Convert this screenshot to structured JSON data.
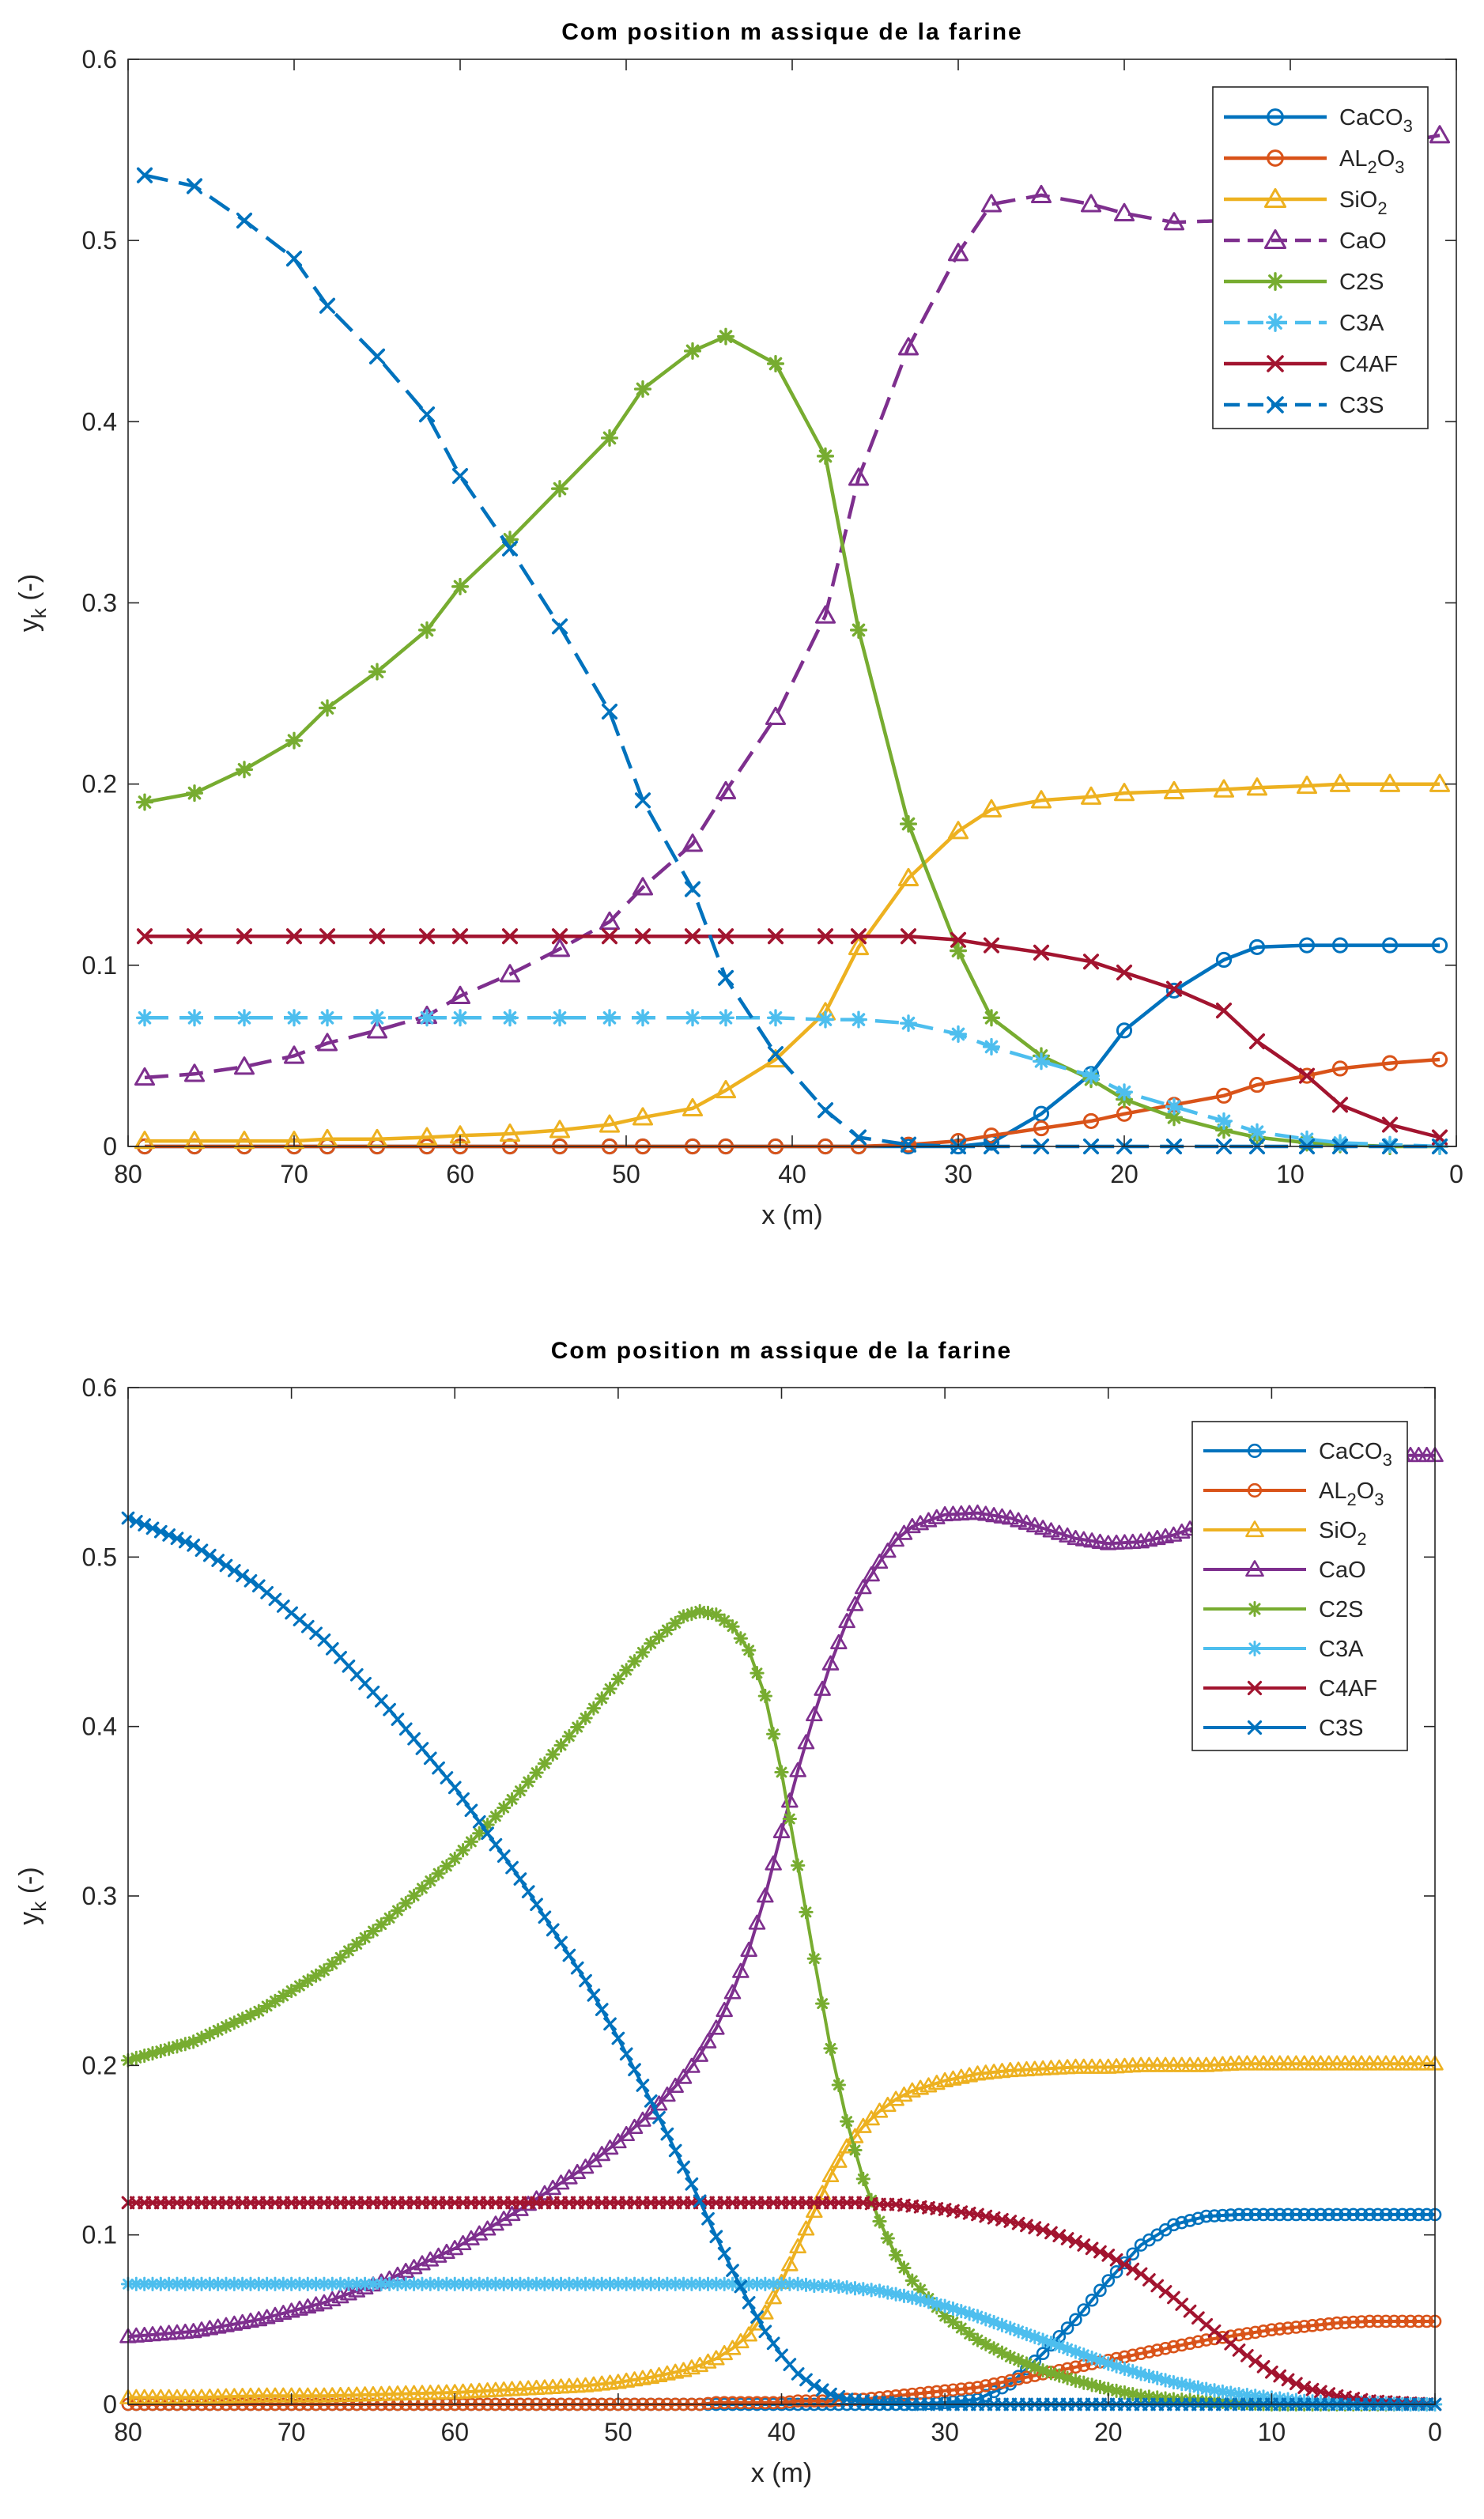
{
  "chart_data": [
    {
      "type": "line",
      "title": "Com position m assique de la farine",
      "xlabel": "x (m)",
      "ylabel": "y_k (-)",
      "xlim": [
        80,
        0
      ],
      "ylim": [
        0,
        0.6
      ],
      "x_reversed": true,
      "x_ticks": [
        80,
        70,
        60,
        50,
        40,
        30,
        20,
        10,
        0
      ],
      "y_ticks": [
        0,
        0.1,
        0.2,
        0.3,
        0.4,
        0.5,
        0.6
      ],
      "legend_position": "top-right",
      "grid": false,
      "x": [
        79,
        76,
        73,
        70,
        68,
        65,
        62,
        60,
        57,
        54,
        51,
        49,
        46,
        44,
        41,
        38,
        36,
        33,
        30,
        28,
        25,
        22,
        20,
        17,
        14,
        12,
        9,
        7,
        4,
        1
      ],
      "series": [
        {
          "name": "CaCO",
          "sub": "3",
          "color": "#0072BD",
          "marker": "circle",
          "dash": false,
          "values": [
            0,
            0,
            0,
            0,
            0,
            0,
            0,
            0,
            0,
            0,
            0,
            0,
            0,
            0,
            0,
            0,
            0,
            0,
            0,
            0.002,
            0.018,
            0.04,
            0.064,
            0.086,
            0.103,
            0.11,
            0.111,
            0.111,
            0.111,
            0.111
          ]
        },
        {
          "name": "AL",
          "sub": "2",
          "tail": "O",
          "sub2": "3",
          "color": "#D95319",
          "marker": "circle",
          "dash": false,
          "values": [
            0,
            0,
            0,
            0,
            0,
            0,
            0,
            0,
            0,
            0,
            0,
            0,
            0,
            0,
            0,
            0,
            0,
            0.001,
            0.003,
            0.006,
            0.01,
            0.014,
            0.018,
            0.023,
            0.028,
            0.034,
            0.039,
            0.043,
            0.046,
            0.048
          ]
        },
        {
          "name": "SiO",
          "sub": "2",
          "color": "#EDB120",
          "marker": "triangle",
          "dash": false,
          "values": [
            0.003,
            0.003,
            0.003,
            0.003,
            0.004,
            0.004,
            0.005,
            0.006,
            0.007,
            0.009,
            0.012,
            0.016,
            0.021,
            0.031,
            0.048,
            0.074,
            0.11,
            0.148,
            0.174,
            0.186,
            0.191,
            0.193,
            0.195,
            0.196,
            0.197,
            0.198,
            0.199,
            0.2,
            0.2,
            0.2
          ]
        },
        {
          "name": "CaO",
          "color": "#7E2F8E",
          "marker": "triangle",
          "dash": true,
          "values": [
            0.038,
            0.04,
            0.044,
            0.05,
            0.057,
            0.064,
            0.072,
            0.083,
            0.095,
            0.109,
            0.124,
            0.143,
            0.167,
            0.196,
            0.237,
            0.293,
            0.369,
            0.441,
            0.493,
            0.52,
            0.525,
            0.52,
            0.515,
            0.51,
            0.511,
            0.52,
            0.533,
            0.545,
            0.553,
            0.558
          ]
        },
        {
          "name": "C2S",
          "color": "#77AC30",
          "marker": "asterisk",
          "dash": false,
          "values": [
            0.19,
            0.195,
            0.208,
            0.224,
            0.242,
            0.262,
            0.285,
            0.309,
            0.335,
            0.363,
            0.391,
            0.418,
            0.439,
            0.447,
            0.432,
            0.381,
            0.285,
            0.178,
            0.108,
            0.071,
            0.05,
            0.037,
            0.026,
            0.016,
            0.009,
            0.005,
            0.002,
            0.001,
            0,
            0
          ]
        },
        {
          "name": "C3A",
          "color": "#4DBEEE",
          "marker": "asterisk",
          "dash": true,
          "values": [
            0.071,
            0.071,
            0.071,
            0.071,
            0.071,
            0.071,
            0.071,
            0.071,
            0.071,
            0.071,
            0.071,
            0.071,
            0.071,
            0.071,
            0.071,
            0.07,
            0.07,
            0.068,
            0.062,
            0.055,
            0.047,
            0.039,
            0.03,
            0.022,
            0.014,
            0.008,
            0.004,
            0.002,
            0.001,
            0
          ]
        },
        {
          "name": "C4AF",
          "color": "#A2142F",
          "marker": "cross",
          "dash": false,
          "values": [
            0.116,
            0.116,
            0.116,
            0.116,
            0.116,
            0.116,
            0.116,
            0.116,
            0.116,
            0.116,
            0.116,
            0.116,
            0.116,
            0.116,
            0.116,
            0.116,
            0.116,
            0.116,
            0.114,
            0.111,
            0.107,
            0.102,
            0.096,
            0.087,
            0.075,
            0.058,
            0.039,
            0.023,
            0.012,
            0.005
          ]
        },
        {
          "name": "C3S",
          "color": "#0072BD",
          "marker": "cross",
          "dash": true,
          "values": [
            0.536,
            0.53,
            0.511,
            0.49,
            0.464,
            0.436,
            0.404,
            0.37,
            0.33,
            0.287,
            0.24,
            0.191,
            0.142,
            0.093,
            0.051,
            0.02,
            0.005,
            0.001,
            0,
            0,
            0,
            0,
            0,
            0,
            0,
            0,
            0,
            0,
            0,
            0
          ]
        }
      ]
    },
    {
      "type": "line",
      "title": "Com position m assique de la farine",
      "xlabel": "x (m)",
      "ylabel": "y_k (-)",
      "xlim": [
        80,
        0
      ],
      "ylim": [
        0,
        0.6
      ],
      "x_reversed": true,
      "x_ticks": [
        80,
        70,
        60,
        50,
        40,
        30,
        20,
        10,
        0
      ],
      "y_ticks": [
        0,
        0.1,
        0.2,
        0.3,
        0.4,
        0.5,
        0.6
      ],
      "legend_position": "top-right",
      "grid": false,
      "x_start": 80,
      "x_end": 0,
      "x_count": 161,
      "x": [
        80,
        76,
        72,
        68,
        64,
        60,
        56,
        52,
        50,
        48,
        46,
        45,
        44,
        43,
        42,
        41,
        40,
        39,
        38,
        37,
        36,
        35,
        34,
        33,
        32,
        30,
        28,
        26,
        24,
        22,
        20,
        18,
        16,
        14,
        12,
        10,
        8,
        6,
        4,
        2,
        0
      ],
      "series": [
        {
          "name": "CaCO",
          "sub": "3",
          "color": "#0072BD",
          "marker": "circle",
          "dash": false,
          "values": [
            0,
            0,
            0,
            0,
            0,
            0,
            0,
            0,
            0,
            0,
            0,
            0,
            0,
            0,
            0,
            0,
            0,
            0,
            0,
            0,
            0,
            0,
            0,
            0,
            0,
            0.001,
            0.003,
            0.012,
            0.03,
            0.05,
            0.073,
            0.094,
            0.106,
            0.111,
            0.112,
            0.112,
            0.112,
            0.112,
            0.112,
            0.112,
            0.112
          ]
        },
        {
          "name": "AL",
          "sub": "2",
          "tail": "O",
          "sub2": "3",
          "color": "#D95319",
          "marker": "circle",
          "dash": false,
          "values": [
            0,
            0,
            0,
            0,
            0,
            0,
            0,
            0,
            0,
            0,
            0,
            0,
            0.001,
            0.001,
            0.001,
            0.001,
            0.001,
            0.002,
            0.002,
            0.002,
            0.003,
            0.003,
            0.004,
            0.005,
            0.006,
            0.008,
            0.01,
            0.014,
            0.018,
            0.022,
            0.026,
            0.03,
            0.034,
            0.038,
            0.041,
            0.044,
            0.046,
            0.048,
            0.049,
            0.049,
            0.049
          ]
        },
        {
          "name": "SiO",
          "sub": "2",
          "color": "#EDB120",
          "marker": "triangle",
          "dash": false,
          "values": [
            0.004,
            0.004,
            0.005,
            0.005,
            0.006,
            0.007,
            0.009,
            0.011,
            0.013,
            0.016,
            0.02,
            0.023,
            0.027,
            0.033,
            0.041,
            0.054,
            0.072,
            0.093,
            0.114,
            0.135,
            0.152,
            0.164,
            0.173,
            0.18,
            0.185,
            0.191,
            0.195,
            0.197,
            0.198,
            0.199,
            0.199,
            0.2,
            0.2,
            0.2,
            0.201,
            0.201,
            0.201,
            0.201,
            0.201,
            0.201,
            0.201
          ]
        },
        {
          "name": "CaO",
          "color": "#7E2F8E",
          "marker": "triangle",
          "dash": false,
          "values": [
            0.04,
            0.043,
            0.05,
            0.06,
            0.074,
            0.092,
            0.115,
            0.14,
            0.155,
            0.172,
            0.193,
            0.206,
            0.222,
            0.243,
            0.268,
            0.3,
            0.338,
            0.374,
            0.407,
            0.437,
            0.462,
            0.482,
            0.497,
            0.51,
            0.518,
            0.525,
            0.526,
            0.523,
            0.517,
            0.511,
            0.508,
            0.509,
            0.513,
            0.52,
            0.53,
            0.54,
            0.549,
            0.555,
            0.558,
            0.56,
            0.56
          ]
        },
        {
          "name": "C2S",
          "color": "#77AC30",
          "marker": "asterisk",
          "dash": false,
          "values": [
            0.203,
            0.214,
            0.232,
            0.256,
            0.287,
            0.322,
            0.362,
            0.405,
            0.428,
            0.449,
            0.465,
            0.468,
            0.466,
            0.459,
            0.445,
            0.418,
            0.373,
            0.318,
            0.263,
            0.21,
            0.167,
            0.133,
            0.108,
            0.088,
            0.073,
            0.052,
            0.038,
            0.028,
            0.02,
            0.014,
            0.009,
            0.005,
            0.003,
            0.002,
            0.001,
            0,
            0,
            0,
            0,
            0,
            0
          ]
        },
        {
          "name": "C3A",
          "color": "#4DBEEE",
          "marker": "asterisk",
          "dash": false,
          "values": [
            0.071,
            0.071,
            0.071,
            0.071,
            0.071,
            0.071,
            0.071,
            0.071,
            0.071,
            0.071,
            0.071,
            0.071,
            0.071,
            0.071,
            0.071,
            0.071,
            0.071,
            0.071,
            0.07,
            0.07,
            0.069,
            0.068,
            0.067,
            0.065,
            0.063,
            0.058,
            0.052,
            0.045,
            0.038,
            0.031,
            0.024,
            0.018,
            0.013,
            0.009,
            0.006,
            0.004,
            0.002,
            0.001,
            0.001,
            0,
            0
          ]
        },
        {
          "name": "C4AF",
          "color": "#A2142F",
          "marker": "cross",
          "dash": false,
          "values": [
            0.119,
            0.119,
            0.119,
            0.119,
            0.119,
            0.119,
            0.119,
            0.119,
            0.119,
            0.119,
            0.119,
            0.119,
            0.119,
            0.119,
            0.119,
            0.119,
            0.119,
            0.119,
            0.119,
            0.119,
            0.119,
            0.119,
            0.118,
            0.118,
            0.117,
            0.115,
            0.112,
            0.108,
            0.103,
            0.096,
            0.088,
            0.077,
            0.063,
            0.047,
            0.032,
            0.019,
            0.01,
            0.005,
            0.002,
            0.001,
            0
          ]
        },
        {
          "name": "C3S",
          "color": "#0072BD",
          "marker": "cross",
          "dash": false,
          "values": [
            0.523,
            0.507,
            0.483,
            0.451,
            0.41,
            0.364,
            0.31,
            0.25,
            0.216,
            0.179,
            0.14,
            0.12,
            0.099,
            0.079,
            0.06,
            0.043,
            0.029,
            0.018,
            0.011,
            0.006,
            0.003,
            0.002,
            0.001,
            0.001,
            0,
            0,
            0,
            0,
            0,
            0,
            0,
            0,
            0,
            0,
            0,
            0,
            0,
            0,
            0,
            0,
            0
          ]
        }
      ]
    }
  ]
}
